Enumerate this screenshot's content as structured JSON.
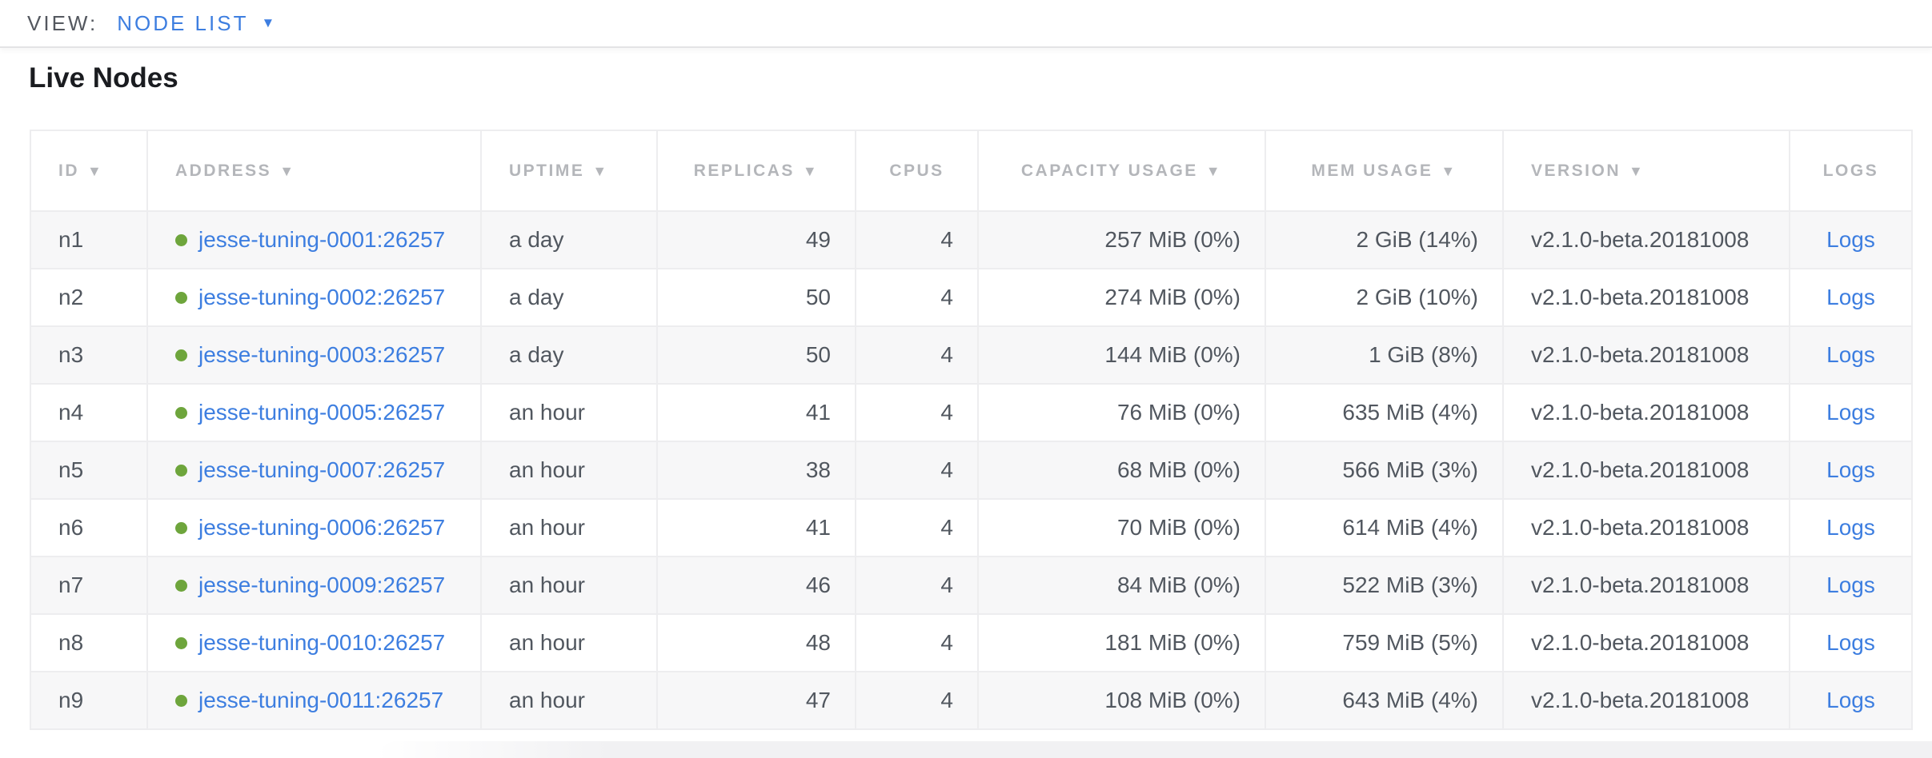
{
  "view_bar": {
    "label": "VIEW:",
    "selected": "NODE LIST"
  },
  "page": {
    "title": "Live Nodes"
  },
  "icons": {
    "dropdown": "▼",
    "sort_desc": "▼"
  },
  "colors": {
    "accent_blue": "#3d7ee0",
    "healthy_green": "#6ea53c",
    "header_gray": "#b4b6ba",
    "text_dark": "#51575f",
    "view_label_gray": "#54585f",
    "title_black": "#1a1c20",
    "border_gray": "#ededef",
    "row_alt_bg": "#f7f7f8",
    "band_gray": "#f1f1f3"
  },
  "table": {
    "columns": [
      {
        "key": "id",
        "label": "ID",
        "sorted": true,
        "align": "left"
      },
      {
        "key": "address",
        "label": "ADDRESS",
        "sorted": true,
        "align": "left"
      },
      {
        "key": "uptime",
        "label": "UPTIME",
        "sorted": true,
        "align": "left"
      },
      {
        "key": "replicas",
        "label": "REPLICAS",
        "sorted": true,
        "align": "right"
      },
      {
        "key": "cpus",
        "label": "CPUS",
        "sorted": false,
        "align": "right"
      },
      {
        "key": "capacity",
        "label": "CAPACITY USAGE",
        "sorted": true,
        "align": "right"
      },
      {
        "key": "mem",
        "label": "MEM USAGE",
        "sorted": true,
        "align": "right"
      },
      {
        "key": "version",
        "label": "VERSION",
        "sorted": true,
        "align": "left"
      },
      {
        "key": "logs",
        "label": "LOGS",
        "sorted": false,
        "align": "center"
      }
    ],
    "rows": [
      {
        "id": "n1",
        "status": "healthy",
        "address": "jesse-tuning-0001:26257",
        "uptime": "a day",
        "replicas": "49",
        "cpus": "4",
        "capacity": "257 MiB (0%)",
        "mem": "2 GiB (14%)",
        "version": "v2.1.0-beta.20181008",
        "logs_label": "Logs"
      },
      {
        "id": "n2",
        "status": "healthy",
        "address": "jesse-tuning-0002:26257",
        "uptime": "a day",
        "replicas": "50",
        "cpus": "4",
        "capacity": "274 MiB (0%)",
        "mem": "2 GiB (10%)",
        "version": "v2.1.0-beta.20181008",
        "logs_label": "Logs"
      },
      {
        "id": "n3",
        "status": "healthy",
        "address": "jesse-tuning-0003:26257",
        "uptime": "a day",
        "replicas": "50",
        "cpus": "4",
        "capacity": "144 MiB (0%)",
        "mem": "1 GiB (8%)",
        "version": "v2.1.0-beta.20181008",
        "logs_label": "Logs"
      },
      {
        "id": "n4",
        "status": "healthy",
        "address": "jesse-tuning-0005:26257",
        "uptime": "an hour",
        "replicas": "41",
        "cpus": "4",
        "capacity": "76 MiB (0%)",
        "mem": "635 MiB (4%)",
        "version": "v2.1.0-beta.20181008",
        "logs_label": "Logs"
      },
      {
        "id": "n5",
        "status": "healthy",
        "address": "jesse-tuning-0007:26257",
        "uptime": "an hour",
        "replicas": "38",
        "cpus": "4",
        "capacity": "68 MiB (0%)",
        "mem": "566 MiB (3%)",
        "version": "v2.1.0-beta.20181008",
        "logs_label": "Logs"
      },
      {
        "id": "n6",
        "status": "healthy",
        "address": "jesse-tuning-0006:26257",
        "uptime": "an hour",
        "replicas": "41",
        "cpus": "4",
        "capacity": "70 MiB (0%)",
        "mem": "614 MiB (4%)",
        "version": "v2.1.0-beta.20181008",
        "logs_label": "Logs"
      },
      {
        "id": "n7",
        "status": "healthy",
        "address": "jesse-tuning-0009:26257",
        "uptime": "an hour",
        "replicas": "46",
        "cpus": "4",
        "capacity": "84 MiB (0%)",
        "mem": "522 MiB (3%)",
        "version": "v2.1.0-beta.20181008",
        "logs_label": "Logs"
      },
      {
        "id": "n8",
        "status": "healthy",
        "address": "jesse-tuning-0010:26257",
        "uptime": "an hour",
        "replicas": "48",
        "cpus": "4",
        "capacity": "181 MiB (0%)",
        "mem": "759 MiB (5%)",
        "version": "v2.1.0-beta.20181008",
        "logs_label": "Logs"
      },
      {
        "id": "n9",
        "status": "healthy",
        "address": "jesse-tuning-0011:26257",
        "uptime": "an hour",
        "replicas": "47",
        "cpus": "4",
        "capacity": "108 MiB (0%)",
        "mem": "643 MiB (4%)",
        "version": "v2.1.0-beta.20181008",
        "logs_label": "Logs"
      }
    ]
  }
}
